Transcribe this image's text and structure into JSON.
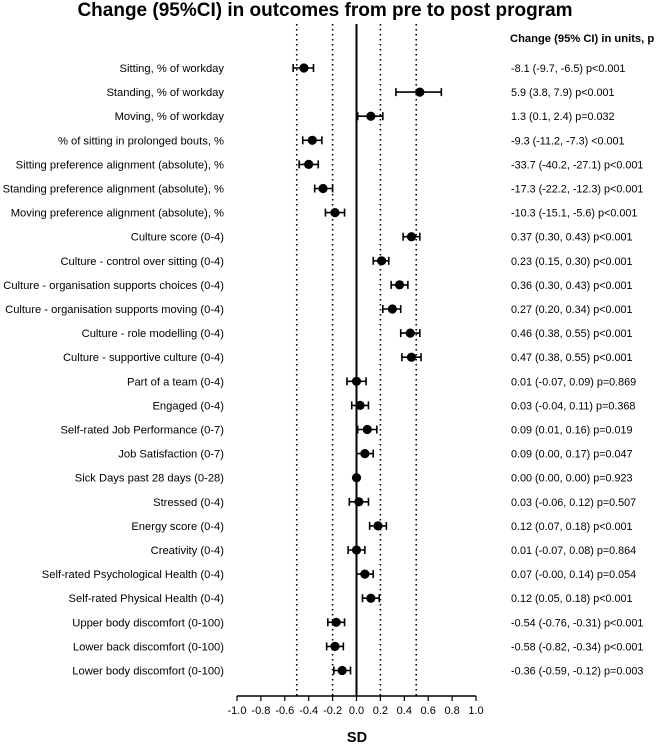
{
  "chart_data": {
    "type": "forest",
    "title": "Change (95%CI) in outcomes from pre to post program",
    "column_header": "Change  (95% CI) in units, p",
    "xlabel": "SD",
    "ylabel": "",
    "xlim": [
      -1.0,
      1.0
    ],
    "xticks": [
      "-1.0",
      "-0.8",
      "-0.6",
      "-0.4",
      "-0.2",
      "0.0",
      "0.2",
      "0.4",
      "0.6",
      "0.8",
      "1.0"
    ],
    "xtick_values": [
      -1.0,
      -0.8,
      -0.6,
      -0.4,
      -0.2,
      0.0,
      0.2,
      0.4,
      0.6,
      0.8,
      1.0
    ],
    "reference_lines": {
      "solid": [
        0.0
      ],
      "dotted": [
        -0.5,
        -0.2,
        0.2,
        0.5
      ]
    },
    "rows": [
      {
        "label": "Sitting, % of workday",
        "est": -0.44,
        "lo": -0.53,
        "hi": -0.36,
        "text": "-8.1 (-9.7, -6.5) p<0.001"
      },
      {
        "label": "Standing, % of workday",
        "est": 0.53,
        "lo": 0.33,
        "hi": 0.71,
        "text": "5.9 (3.8, 7.9) p<0.001"
      },
      {
        "label": "Moving, % of workday",
        "est": 0.12,
        "lo": 0.01,
        "hi": 0.22,
        "text": "1.3  (0.1, 2.4) p=0.032"
      },
      {
        "label": "% of sitting in prolonged bouts, %",
        "est": -0.37,
        "lo": -0.45,
        "hi": -0.29,
        "text": "-9.3  (-11.2, -7.3) <0.001"
      },
      {
        "label": "Sitting preference alignment (absolute), %",
        "est": -0.4,
        "lo": -0.48,
        "hi": -0.32,
        "text": "-33.7  (-40.2, -27.1) p<0.001"
      },
      {
        "label": "Standing preference alignment (absolute), %",
        "est": -0.28,
        "lo": -0.35,
        "hi": -0.2,
        "text": "-17.3  (-22.2, -12.3) p<0.001"
      },
      {
        "label": "Moving preference alignment (absolute), %",
        "est": -0.18,
        "lo": -0.26,
        "hi": -0.1,
        "text": "-10.3  (-15.1, -5.6) p<0.001"
      },
      {
        "label": "Culture score (0-4)",
        "est": 0.46,
        "lo": 0.39,
        "hi": 0.53,
        "text": "0.37  (0.30, 0.43) p<0.001"
      },
      {
        "label": "Culture - control over sitting (0-4)",
        "est": 0.21,
        "lo": 0.14,
        "hi": 0.27,
        "text": "0.23  (0.15, 0.30) p<0.001"
      },
      {
        "label": "Culture - organisation supports choices (0-4)",
        "est": 0.36,
        "lo": 0.29,
        "hi": 0.43,
        "text": "0.36  (0.30, 0.43) p<0.001"
      },
      {
        "label": "Culture - organisation supports moving (0-4)",
        "est": 0.3,
        "lo": 0.22,
        "hi": 0.37,
        "text": "0.27  (0.20, 0.34) p<0.001"
      },
      {
        "label": "Culture - role modelling (0-4)",
        "est": 0.45,
        "lo": 0.37,
        "hi": 0.53,
        "text": "0.46  (0.38, 0.55) p<0.001"
      },
      {
        "label": "Culture - supportive culture (0-4)",
        "est": 0.46,
        "lo": 0.38,
        "hi": 0.54,
        "text": "0.47  (0.38, 0.55) p<0.001"
      },
      {
        "label": "Part of a team (0-4)",
        "est": 0.0,
        "lo": -0.08,
        "hi": 0.08,
        "text": "0.01  (-0.07, 0.09)  p=0.869"
      },
      {
        "label": "Engaged (0-4)",
        "est": 0.03,
        "lo": -0.04,
        "hi": 0.1,
        "text": "0.03  (-0.04, 0.11)  p=0.368"
      },
      {
        "label": "Self-rated Job Performance (0-7)",
        "est": 0.09,
        "lo": 0.01,
        "hi": 0.17,
        "text": "0.09  (0.01, 0.16)  p=0.019"
      },
      {
        "label": "Job Satisfaction (0-7)",
        "est": 0.07,
        "lo": 0.0,
        "hi": 0.14,
        "text": "0.09  (0.00, 0.17)  p=0.047"
      },
      {
        "label": "Sick Days past 28 days (0-28)",
        "est": 0.0,
        "lo": 0.0,
        "hi": 0.0,
        "text": "0.00  (0.00, 0.00)  p=0.923"
      },
      {
        "label": "Stressed (0-4)",
        "est": 0.02,
        "lo": -0.06,
        "hi": 0.1,
        "text": "0.03  (-0.06, 0.12)  p=0.507"
      },
      {
        "label": "Energy score (0-4)",
        "est": 0.18,
        "lo": 0.11,
        "hi": 0.25,
        "text": "0.12  (0.07, 0.18)  p<0.001"
      },
      {
        "label": "Creativity (0-4)",
        "est": 0.0,
        "lo": -0.07,
        "hi": 0.07,
        "text": "0.01  (-0.07, 0.08)  p=0.864"
      },
      {
        "label": "Self-rated Psychological Health (0-4)",
        "est": 0.07,
        "lo": 0.0,
        "hi": 0.14,
        "text": "0.07  (-0.00, 0.14)  p=0.054"
      },
      {
        "label": "Self-rated Physical Health (0-4)",
        "est": 0.12,
        "lo": 0.05,
        "hi": 0.19,
        "text": "0.12  (0.05, 0.18)   p<0.001"
      },
      {
        "label": "Upper body discomfort (0-100)",
        "est": -0.17,
        "lo": -0.24,
        "hi": -0.1,
        "text": "-0.54  (-0.76, -0.31)  p<0.001"
      },
      {
        "label": "Lower back discomfort (0-100)",
        "est": -0.18,
        "lo": -0.25,
        "hi": -0.11,
        "text": "-0.58  (-0.82, -0.34)  p<0.001"
      },
      {
        "label": "Lower body discomfort (0-100)",
        "est": -0.12,
        "lo": -0.19,
        "hi": -0.05,
        "text": "-0.36  (-0.59, -0.12)  p=0.003"
      }
    ]
  }
}
